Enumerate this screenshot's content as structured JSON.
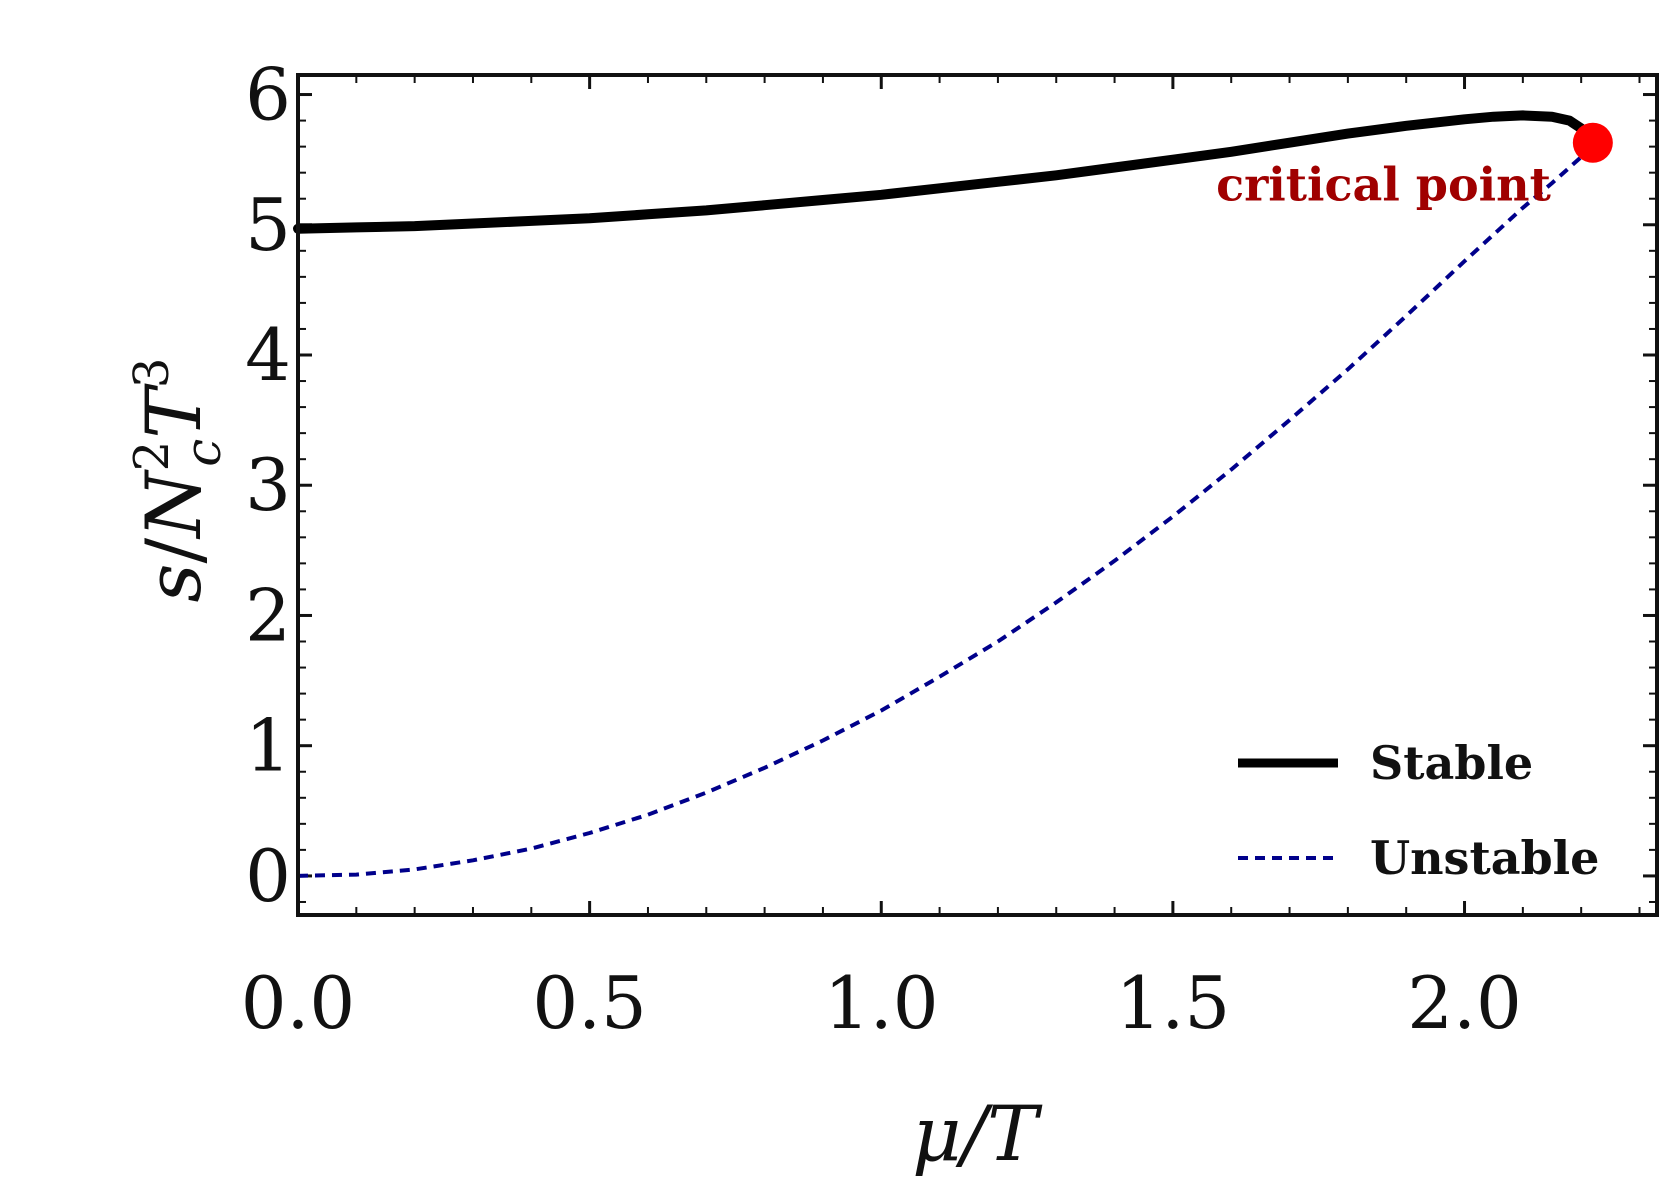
{
  "chart_data": {
    "type": "line",
    "xlabel": "μ/T",
    "ylabel": "s/N_c^2 T^3",
    "ylabel_parts": {
      "s": "s",
      "slash": "/",
      "N": "N",
      "sup2": "2",
      "c": "c",
      "T": "T",
      "sup3": "3"
    },
    "xlim": [
      0,
      2.33
    ],
    "ylim": [
      -0.3,
      6.15
    ],
    "xticks": [
      "0.0",
      "0.5",
      "1.0",
      "1.5",
      "2.0"
    ],
    "xtick_values": [
      0,
      0.5,
      1.0,
      1.5,
      2.0
    ],
    "yticks": [
      "0",
      "1",
      "2",
      "3",
      "4",
      "5",
      "6"
    ],
    "ytick_values": [
      0,
      1,
      2,
      3,
      4,
      5,
      6
    ],
    "grid": false,
    "legend_position": "bottom-right",
    "series": [
      {
        "name": "Stable",
        "style": "solid",
        "color": "#000000",
        "x": [
          0,
          0.1,
          0.2,
          0.3,
          0.4,
          0.5,
          0.6,
          0.7,
          0.8,
          0.9,
          1.0,
          1.1,
          1.2,
          1.3,
          1.4,
          1.5,
          1.6,
          1.7,
          1.8,
          1.9,
          2.0,
          2.05,
          2.1,
          2.15,
          2.18,
          2.2,
          2.22
        ],
        "y": [
          4.97,
          4.98,
          4.99,
          5.01,
          5.03,
          5.05,
          5.08,
          5.11,
          5.15,
          5.19,
          5.23,
          5.28,
          5.33,
          5.38,
          5.44,
          5.5,
          5.56,
          5.63,
          5.7,
          5.76,
          5.81,
          5.83,
          5.84,
          5.83,
          5.8,
          5.74,
          5.63
        ]
      },
      {
        "name": "Unstable",
        "style": "dashed",
        "color": "#00008b",
        "x": [
          0,
          0.1,
          0.2,
          0.3,
          0.4,
          0.5,
          0.6,
          0.7,
          0.8,
          0.9,
          1.0,
          1.1,
          1.2,
          1.3,
          1.4,
          1.5,
          1.6,
          1.7,
          1.8,
          1.9,
          2.0,
          2.1,
          2.15,
          2.2,
          2.22
        ],
        "y": [
          0,
          0.01,
          0.05,
          0.12,
          0.21,
          0.33,
          0.47,
          0.64,
          0.83,
          1.04,
          1.27,
          1.53,
          1.8,
          2.1,
          2.42,
          2.76,
          3.12,
          3.5,
          3.89,
          4.3,
          4.72,
          5.13,
          5.32,
          5.52,
          5.63
        ]
      }
    ],
    "critical_point": {
      "x": 2.22,
      "y": 5.63,
      "label": "critical point",
      "color": "#ff0000",
      "label_color": "#a00000"
    }
  }
}
